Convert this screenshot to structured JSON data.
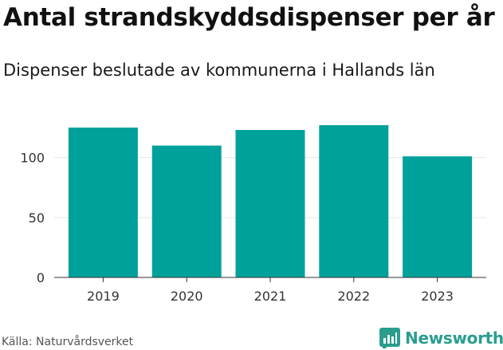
{
  "title": "Antal strandskyddsdispenser per år",
  "subtitle": "Dispenser beslutade av kommunerna i Hallands län",
  "source": "Källa: Naturvårdsverket",
  "brand": "Newsworthy",
  "colors": {
    "bar": "#00a19a",
    "grid": "#e6e6e6",
    "axis": "#333333",
    "brand": "#2a9d8f"
  },
  "icons": {
    "brand": "bar-chart-logo-icon"
  },
  "chart_data": {
    "type": "bar",
    "title": "Antal strandskyddsdispenser per år",
    "subtitle": "Dispenser beslutade av kommunerna i Hallands län",
    "categories": [
      "2019",
      "2020",
      "2021",
      "2022",
      "2023"
    ],
    "values": [
      125,
      110,
      123,
      127,
      101
    ],
    "xlabel": "",
    "ylabel": "",
    "ylim": [
      0,
      135
    ],
    "yticks": [
      0,
      50,
      100
    ],
    "grid": true,
    "legend": "none"
  }
}
